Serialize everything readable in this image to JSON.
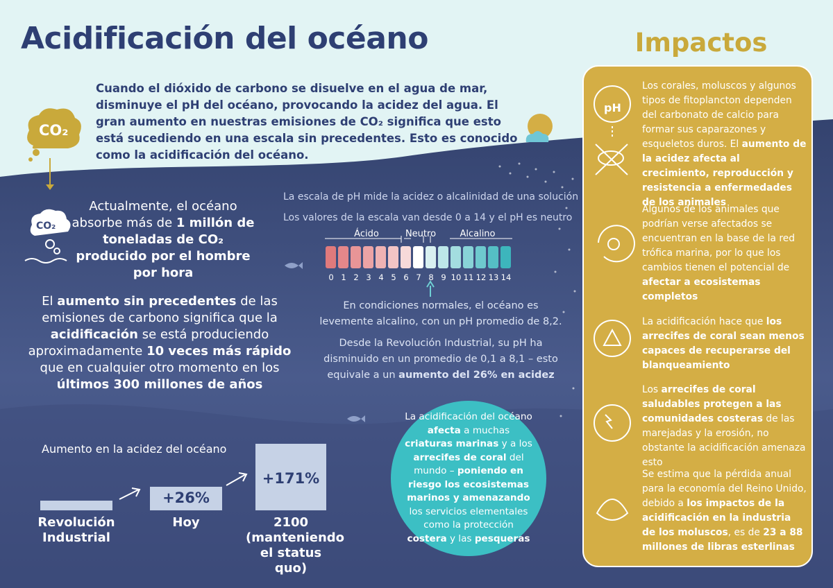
{
  "header": {
    "title": "Acidificación del océano",
    "intro": "Cuando el dióxido de carbono se disuelve en el agua de mar, disminuye el pH del océano, provocando la acidez del agua. El gran aumento en nuestras emisiones de CO₂ significa que esto está sucediendo en una escala sin precedentes. Esto es conocido como la acidificación del océano."
  },
  "icons": {
    "co2_top": "CO₂",
    "co2_small": "CO₂",
    "ph": "pH"
  },
  "left": {
    "absorb": [
      {
        "text": "Actualmente, el océano absorbe más de ",
        "bold": false
      },
      {
        "text": "1 millón de toneladas de CO₂ producido por el hombre por hora",
        "bold": true
      }
    ],
    "increase": [
      {
        "text": "El ",
        "bold": false
      },
      {
        "text": "aumento sin precedentes",
        "bold": true
      },
      {
        "text": " de las emisiones de carbono significa que la ",
        "bold": false
      },
      {
        "text": "acidificación",
        "bold": true
      },
      {
        "text": " se está produciendo aproximadamente ",
        "bold": false
      },
      {
        "text": "10 veces más rápido",
        "bold": true
      },
      {
        "text": " que en cualquier otro momento en los ",
        "bold": false
      },
      {
        "text": "últimos 300 millones de años",
        "bold": true
      }
    ]
  },
  "chart": {
    "title": "Aumento en la acidez del océano",
    "bars": [
      {
        "label": "Revolución Industrial"
      },
      {
        "label": "Hoy",
        "value_label": "+26%"
      },
      {
        "label": "2100 (manteniendo el status quo)",
        "value_label": "+171%"
      }
    ]
  },
  "ph": {
    "line1": "La escala de pH mide la acidez o alcalinidad de una solución",
    "line2": "Los valores de la escala van desde 0 a 14 y el pH es neutro",
    "zones": [
      "Ácido",
      "Neutro",
      "Alcalino"
    ],
    "scale": [
      "0",
      "1",
      "2",
      "3",
      "4",
      "5",
      "6",
      "7",
      "8",
      "9",
      "10",
      "11",
      "12",
      "13",
      "14"
    ],
    "colors": [
      "#e07a7c",
      "#e4878a",
      "#e89597",
      "#eca3a5",
      "#efb2b3",
      "#f3c4c5",
      "#f7d9d9",
      "#ffffff",
      "#d8f0f1",
      "#bde7e9",
      "#a3dde0",
      "#88d3d7",
      "#6ec9ce",
      "#55bfc5",
      "#3db5bc"
    ],
    "normal": "En condiciones normales, el océano es levemente alcalino, con un pH promedio de 8,2.",
    "change": [
      {
        "text": "Desde la Revolución Industrial, su pH ha disminuido en un promedio de 0,1 a 8,1 – esto equivale a un ",
        "bold": false
      },
      {
        "text": "aumento del 26% en acidez",
        "bold": true
      }
    ]
  },
  "circle": [
    {
      "text": "La acidificación del océano ",
      "bold": false
    },
    {
      "text": "afecta",
      "bold": true
    },
    {
      "text": " a muchas ",
      "bold": false
    },
    {
      "text": "criaturas marinas",
      "bold": true
    },
    {
      "text": " y a los ",
      "bold": false
    },
    {
      "text": "arrecifes de coral",
      "bold": true
    },
    {
      "text": " del mundo – ",
      "bold": false
    },
    {
      "text": "poniendo en riesgo los ecosistemas marinos y amenazando",
      "bold": true
    },
    {
      "text": " los servicios elementales como la protección ",
      "bold": false
    },
    {
      "text": "costera",
      "bold": true
    },
    {
      "text": " y las ",
      "bold": false
    },
    {
      "text": "pesqueras",
      "bold": true
    }
  ],
  "impacts": {
    "title": "Impactos",
    "items": [
      [
        {
          "text": "Los corales, moluscos y algunos tipos de fitoplancton dependen del carbonato de calcio para formar sus caparazones y esqueletos duros. El ",
          "bold": false
        },
        {
          "text": "aumento de la acidez afecta al crecimiento, reproducción y resistencia a enfermedades de los animales",
          "bold": true
        }
      ],
      [
        {
          "text": "Algunos de los animales que podrían verse afectados se encuentran en la base de la red trófica marina, por lo que los cambios tienen el potencial de ",
          "bold": false
        },
        {
          "text": "afectar a ecosistemas completos",
          "bold": true
        }
      ],
      [
        {
          "text": "La acidificación hace que ",
          "bold": false
        },
        {
          "text": "los arrecifes de coral sean menos capaces de recuperarse del blanqueamiento",
          "bold": true
        }
      ],
      [
        {
          "text": "Los ",
          "bold": false
        },
        {
          "text": "arrecifes de coral saludables protegen a las comunidades costeras",
          "bold": true
        },
        {
          "text": " de las marejadas y la erosión, no obstante la acidificación amenaza esto",
          "bold": false
        }
      ],
      [
        {
          "text": "Se estima que la pérdida anual para la economía del Reino Unido, debido a ",
          "bold": false
        },
        {
          "text": "los impactos de la acidificación en la industria de los moluscos",
          "bold": true
        },
        {
          "text": ", es de ",
          "bold": false
        },
        {
          "text": "23 a 88 millones de libras esterlinas",
          "bold": true
        }
      ]
    ]
  }
}
